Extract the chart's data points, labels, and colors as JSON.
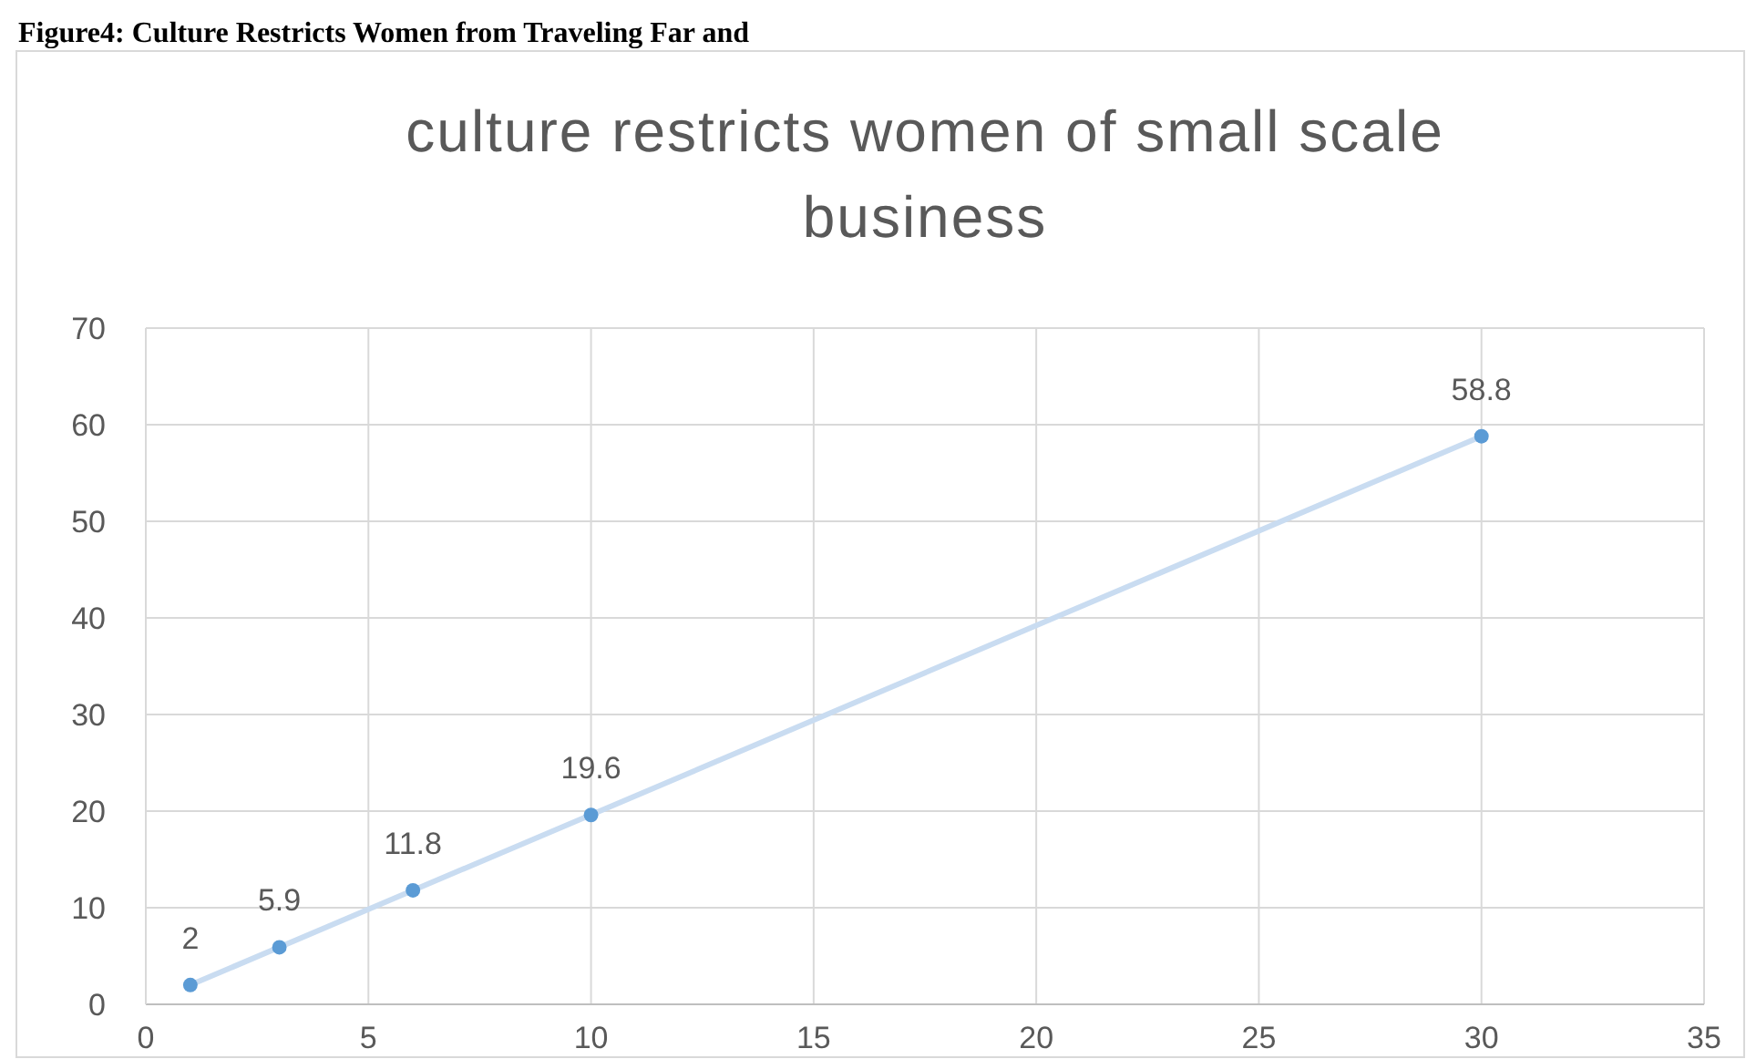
{
  "chart_data": {
    "type": "scatter",
    "title": "culture restricts women of small scale business",
    "annotations": [
      "Figure4: Culture Restricts Women from Traveling Far and"
    ],
    "series": [
      {
        "type": "line",
        "color": "#c9dcf1",
        "marker": "none",
        "x": [
          1,
          30
        ],
        "values": [
          2,
          58.8
        ]
      },
      {
        "color": "#5b9bd5",
        "marker": "circle",
        "x": [
          1,
          3,
          6,
          10,
          30
        ],
        "values": [
          2,
          5.9,
          11.8,
          19.6,
          58.8
        ],
        "value_labels": [
          "2",
          "5.9",
          "11.8",
          "19.6",
          "58.8"
        ]
      }
    ],
    "grid": true,
    "xlim": [
      0,
      35
    ],
    "xticks": [
      0,
      5,
      10,
      15,
      20,
      25,
      30,
      35
    ],
    "ylim": [
      0,
      70
    ],
    "yticks": [
      0,
      10,
      20,
      30,
      40,
      50,
      60,
      70
    ]
  }
}
